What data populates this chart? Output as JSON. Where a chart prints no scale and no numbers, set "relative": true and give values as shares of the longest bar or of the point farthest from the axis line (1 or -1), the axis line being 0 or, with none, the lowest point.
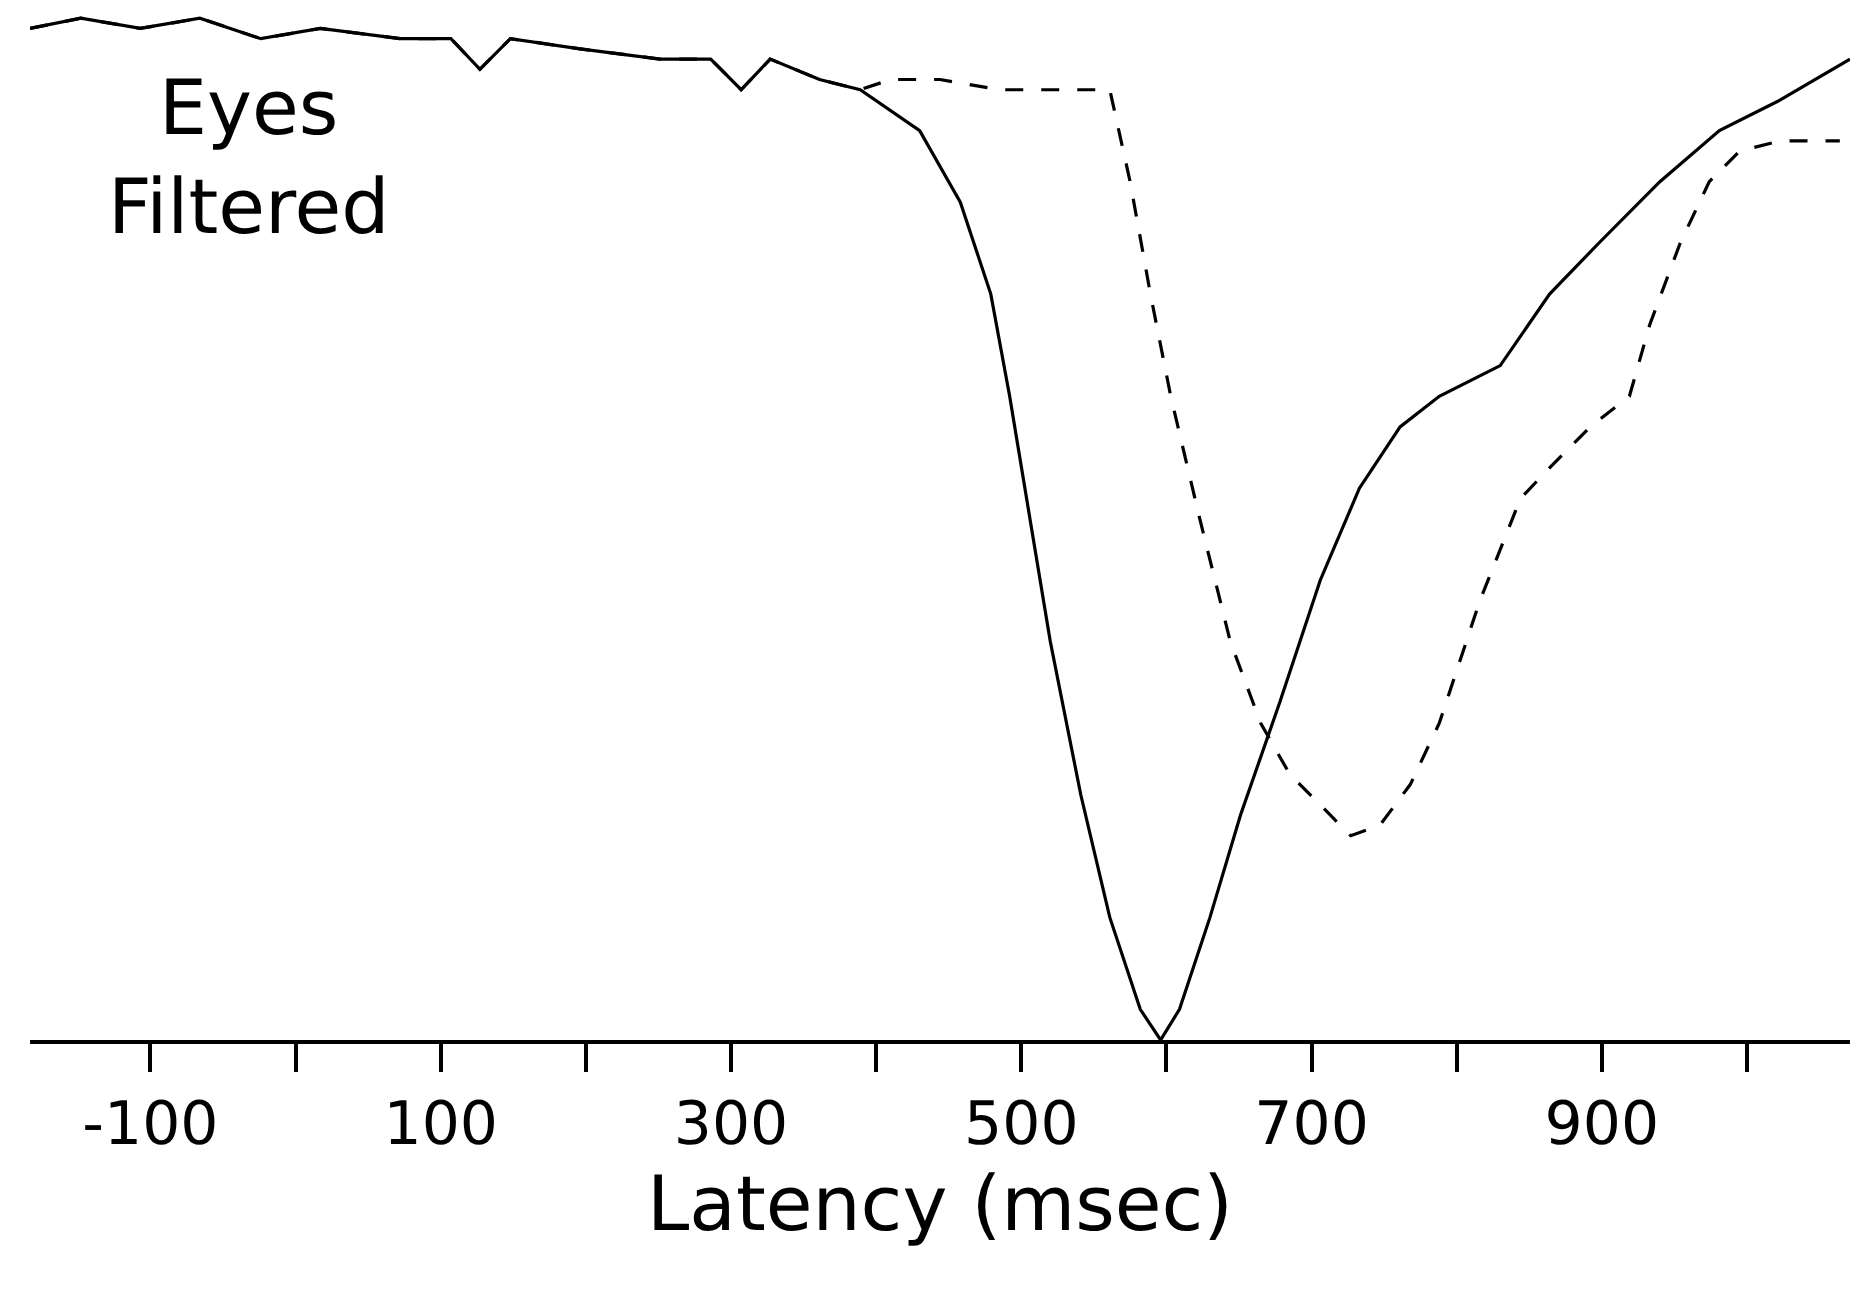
{
  "chart_data": {
    "type": "line",
    "title": "Eyes\nFiltered",
    "xlabel": "Latency (msec)",
    "relative": true,
    "xlim": [
      -183,
      1071
    ],
    "xticks": [
      -100,
      {
        "value": 0,
        "label": null
      },
      100,
      {
        "value": 200,
        "label": null
      },
      300,
      {
        "value": 400,
        "label": null
      },
      500,
      {
        "value": 600,
        "label": null
      },
      700,
      {
        "value": 800,
        "label": null
      },
      900,
      {
        "value": 1000,
        "label": null
      }
    ],
    "marker": "none",
    "series": [
      {
        "color": "#000000",
        "line_style": "dashed",
        "x": [
          -183,
          -148,
          -107,
          -66,
          -24,
          17,
          72,
          107,
          127,
          148,
          196,
          251,
          286,
          307,
          327,
          361,
          389,
          410,
          444,
          485,
          527,
          561,
          575,
          589,
          603,
          623,
          644,
          665,
          685,
          713,
          727,
          747,
          768,
          788,
          816,
          844,
          864,
          892,
          919,
          933,
          954,
          974,
          995,
          1023,
          1064
        ],
        "values": [
          0.99,
          1.0,
          0.99,
          1.0,
          0.98,
          0.99,
          0.98,
          0.98,
          0.95,
          0.98,
          0.97,
          0.96,
          0.96,
          0.93,
          0.96,
          0.94,
          0.93,
          0.94,
          0.94,
          0.93,
          0.93,
          0.93,
          0.84,
          0.73,
          0.63,
          0.51,
          0.39,
          0.31,
          0.26,
          0.22,
          0.2,
          0.21,
          0.25,
          0.31,
          0.43,
          0.53,
          0.56,
          0.6,
          0.63,
          0.7,
          0.78,
          0.84,
          0.87,
          0.88,
          0.88
        ]
      },
      {
        "color": "#000000",
        "line_style": "solid",
        "x": [
          -183,
          -148,
          -107,
          -66,
          -24,
          17,
          72,
          107,
          127,
          148,
          196,
          251,
          286,
          307,
          327,
          361,
          389,
          430,
          458,
          479,
          492,
          506,
          520,
          541,
          561,
          582,
          596,
          609,
          630,
          651,
          678,
          706,
          733,
          761,
          788,
          830,
          864,
          898,
          940,
          981,
          1023,
          1071
        ],
        "values": [
          0.99,
          1.0,
          0.99,
          1.0,
          0.98,
          0.99,
          0.98,
          0.98,
          0.95,
          0.98,
          0.97,
          0.96,
          0.96,
          0.93,
          0.96,
          0.94,
          0.93,
          0.89,
          0.82,
          0.73,
          0.63,
          0.51,
          0.39,
          0.24,
          0.12,
          0.03,
          0.0,
          0.03,
          0.12,
          0.22,
          0.33,
          0.45,
          0.54,
          0.6,
          0.63,
          0.66,
          0.73,
          0.78,
          0.84,
          0.89,
          0.92,
          0.96
        ]
      }
    ]
  }
}
